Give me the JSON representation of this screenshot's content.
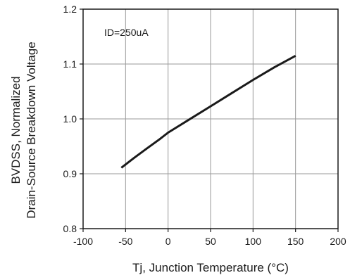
{
  "chart_data": {
    "type": "line",
    "xlabel": "Tj, Junction Temperature (°C)",
    "ylabel_line1": "BVDSS, Normalized",
    "ylabel_line2": "Drain-Source Breakdown Voltage",
    "annotation": "ID=250uA",
    "xlim": [
      -100,
      200
    ],
    "ylim": [
      0.8,
      1.2
    ],
    "x_ticks": [
      -100,
      -50,
      0,
      50,
      100,
      150,
      200
    ],
    "y_ticks": [
      0.8,
      0.9,
      1.0,
      1.1,
      1.2
    ],
    "x_tick_labels": [
      "-100",
      "-50",
      "0",
      "50",
      "100",
      "150",
      "200"
    ],
    "y_tick_labels": [
      "0.8",
      "0.9",
      "1.0",
      "1.1",
      "1.2"
    ],
    "grid": true,
    "series": [
      {
        "x": [
          -55,
          -40,
          -25,
          -10,
          0,
          25,
          50,
          75,
          100,
          125,
          150
        ],
        "y": [
          0.911,
          0.929,
          0.946,
          0.963,
          0.975,
          0.999,
          1.023,
          1.047,
          1.071,
          1.094,
          1.115
        ],
        "color": "#1a1a1a"
      }
    ]
  }
}
